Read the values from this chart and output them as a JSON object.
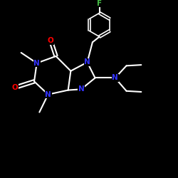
{
  "background_color": "#000000",
  "bond_color": "#ffffff",
  "atom_colors": {
    "N": "#3333ff",
    "O": "#ff0000",
    "F": "#44bb44",
    "C": "#ffffff"
  },
  "figsize": [
    2.5,
    2.5
  ],
  "dpi": 100
}
